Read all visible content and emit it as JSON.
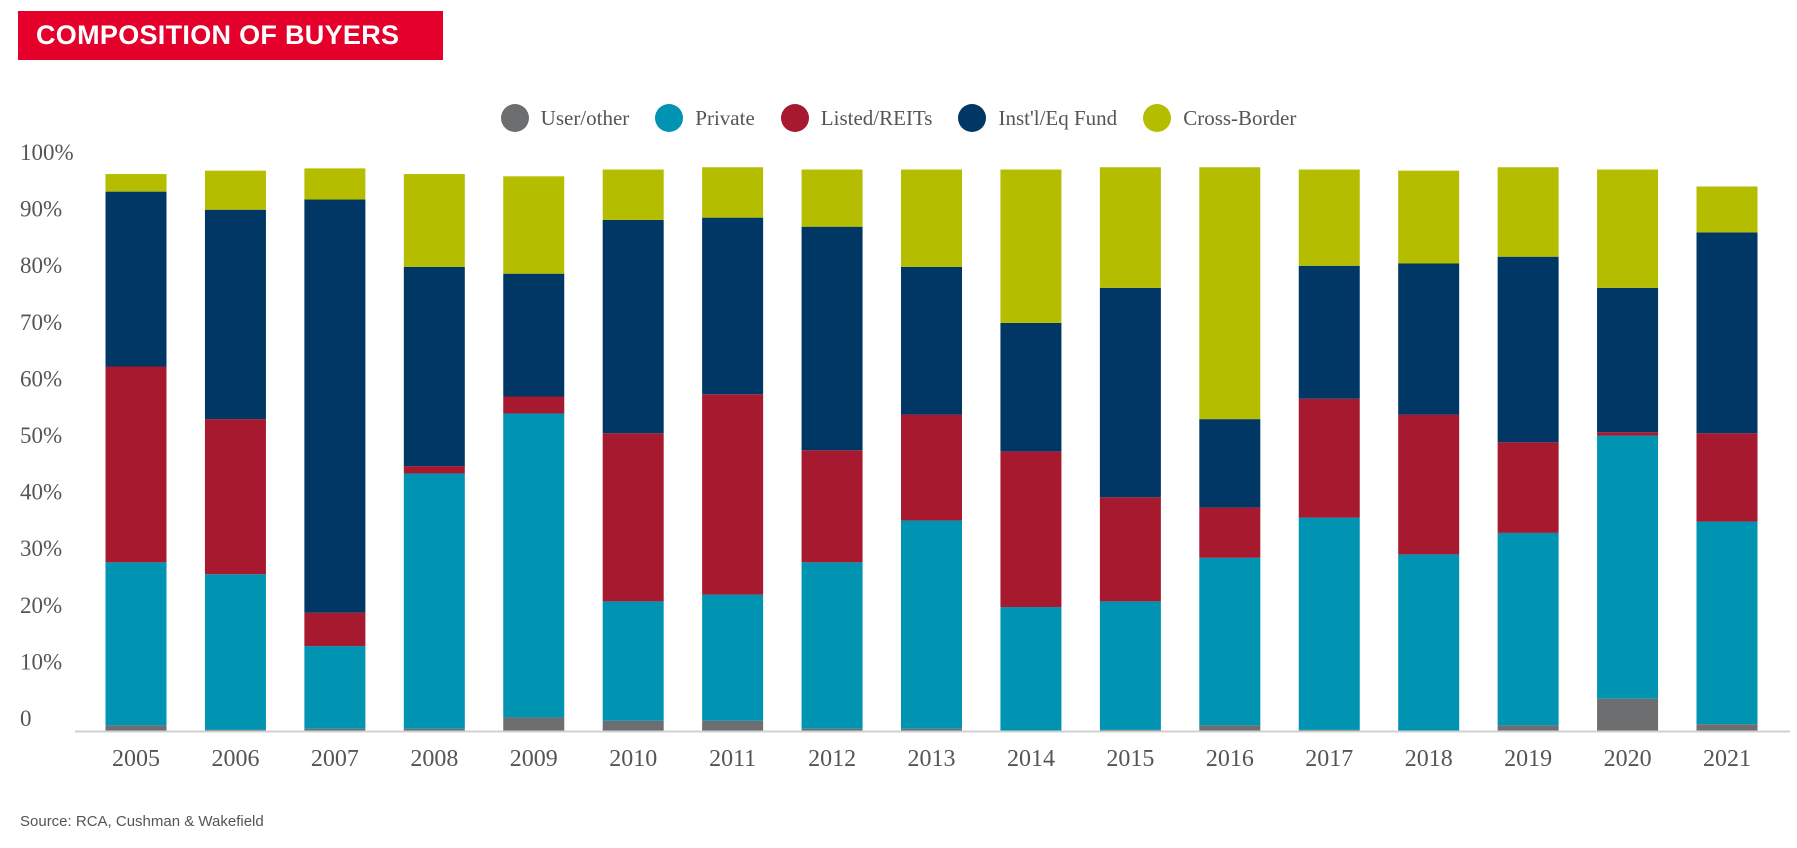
{
  "title": "COMPOSITION OF BUYERS",
  "source": "Source: RCA, Cushman & Wakefield",
  "chart_data": {
    "type": "bar",
    "stacked": true,
    "title": "COMPOSITION OF BUYERS",
    "xlabel": "",
    "ylabel": "",
    "ylim": [
      0,
      100
    ],
    "yticks": [
      "0",
      "10%",
      "20%",
      "30%",
      "40%",
      "50%",
      "60%",
      "70%",
      "80%",
      "90%",
      "100%"
    ],
    "grid": false,
    "legend_position": "top",
    "categories": [
      "2005",
      "2006",
      "2007",
      "2008",
      "2009",
      "2010",
      "2011",
      "2012",
      "2013",
      "2014",
      "2015",
      "2016",
      "2017",
      "2018",
      "2019",
      "2020",
      "2021"
    ],
    "series": [
      {
        "name": "User/other",
        "color": "#6d6e70",
        "values": [
          1,
          0.2,
          0.4,
          0.4,
          2.4,
          1.8,
          1.8,
          0.4,
          0.4,
          0,
          0.2,
          1,
          0.2,
          0,
          1,
          5.7,
          1.2
        ]
      },
      {
        "name": "Private",
        "color": "#0093b2",
        "values": [
          28.8,
          27.5,
          14.6,
          45.1,
          53.7,
          21.1,
          22.3,
          29.4,
          36.8,
          21.9,
          22.7,
          29.6,
          37.5,
          31.2,
          34,
          46.5,
          35.8
        ]
      },
      {
        "name": "Listed/REITs",
        "color": "#a6192e",
        "values": [
          34.6,
          27.4,
          5.9,
          1.3,
          3,
          29.7,
          35.4,
          19.8,
          18.7,
          27.5,
          18.4,
          8.9,
          21,
          24.7,
          16,
          0.6,
          15.6
        ]
      },
      {
        "name": "Inst'l/Eq Fund",
        "color": "#003764",
        "values": [
          30.9,
          37,
          73,
          35.2,
          21.7,
          37.7,
          31.2,
          39.5,
          26.1,
          22.7,
          37,
          15.6,
          23.5,
          26.7,
          32.8,
          25.5,
          35.5
        ]
      },
      {
        "name": "Cross-Border",
        "color": "#b5bd00",
        "values": [
          3.1,
          6.9,
          5.5,
          16.4,
          17.2,
          8.9,
          8.9,
          10.1,
          17.2,
          27.1,
          21.3,
          44.5,
          17,
          16.4,
          15.8,
          20.9,
          8.1
        ]
      }
    ]
  }
}
